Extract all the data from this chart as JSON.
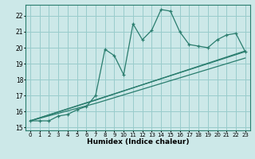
{
  "xlabel": "Humidex (Indice chaleur)",
  "bg_color": "#cce8e8",
  "grid_color": "#99cccc",
  "line_color": "#2a7d6e",
  "xmin": -0.5,
  "xmax": 23.5,
  "ymin": 14.8,
  "ymax": 22.7,
  "yticks": [
    15,
    16,
    17,
    18,
    19,
    20,
    21,
    22
  ],
  "xticks": [
    0,
    1,
    2,
    3,
    4,
    5,
    6,
    7,
    8,
    9,
    10,
    11,
    12,
    13,
    14,
    15,
    16,
    17,
    18,
    19,
    20,
    21,
    22,
    23
  ],
  "jagged_x": [
    0,
    1,
    2,
    3,
    4,
    5,
    6,
    7,
    8,
    9,
    10,
    11,
    12,
    13,
    14,
    15,
    16,
    17,
    18,
    19,
    20,
    21,
    22,
    23
  ],
  "jagged_y": [
    15.4,
    15.4,
    15.4,
    15.7,
    15.8,
    16.1,
    16.3,
    17.0,
    19.9,
    19.5,
    18.3,
    21.5,
    20.5,
    21.1,
    22.4,
    22.3,
    21.0,
    20.2,
    20.1,
    20.0,
    20.5,
    20.8,
    20.9,
    19.75
  ],
  "line2_x": [
    0,
    7,
    23
  ],
  "line2_y": [
    15.4,
    16.7,
    19.8
  ],
  "line3_x": [
    0,
    7,
    23
  ],
  "line3_y": [
    15.4,
    16.5,
    19.35
  ],
  "line4_x": [
    0,
    23
  ],
  "line4_y": [
    15.4,
    19.75
  ]
}
